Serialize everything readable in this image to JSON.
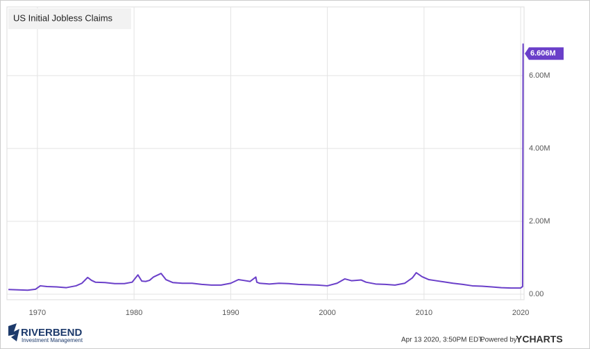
{
  "chart_data": {
    "type": "line",
    "title": "US Initial Jobless Claims",
    "x": [
      1967.0,
      1968.0,
      1969.0,
      1969.8,
      1970.3,
      1971.0,
      1972.0,
      1973.0,
      1974.0,
      1974.6,
      1975.2,
      1975.6,
      1976.0,
      1977.0,
      1978.0,
      1979.0,
      1979.8,
      1980.4,
      1980.8,
      1981.2,
      1981.6,
      1982.0,
      1982.8,
      1983.3,
      1984.0,
      1985.0,
      1986.0,
      1987.0,
      1988.0,
      1989.0,
      1990.0,
      1990.8,
      1991.3,
      1992.0,
      1992.6,
      1992.7,
      1993.0,
      1994.0,
      1995.0,
      1996.0,
      1997.0,
      1998.0,
      1999.0,
      2000.0,
      2001.0,
      2001.8,
      2002.5,
      2003.5,
      2004.0,
      2005.0,
      2006.0,
      2007.0,
      2008.0,
      2008.8,
      2009.2,
      2009.8,
      2010.5,
      2011.0,
      2012.0,
      2013.0,
      2014.0,
      2015.0,
      2016.0,
      2017.0,
      2018.0,
      2019.0,
      2020.0,
      2020.2,
      2020.23,
      2020.25,
      2020.26
    ],
    "series": [
      {
        "name": "US Initial Jobless Claims",
        "color": "#6a3fc9",
        "values": [
          130000,
          120000,
          110000,
          135000,
          230000,
          210000,
          200000,
          180000,
          230000,
          300000,
          460000,
          380000,
          330000,
          320000,
          290000,
          290000,
          330000,
          530000,
          360000,
          350000,
          380000,
          470000,
          570000,
          400000,
          320000,
          300000,
          300000,
          270000,
          250000,
          250000,
          300000,
          400000,
          380000,
          350000,
          470000,
          330000,
          300000,
          280000,
          300000,
          290000,
          270000,
          260000,
          250000,
          230000,
          300000,
          420000,
          370000,
          390000,
          330000,
          280000,
          270000,
          250000,
          300000,
          450000,
          590000,
          480000,
          400000,
          380000,
          340000,
          300000,
          270000,
          230000,
          220000,
          200000,
          180000,
          170000,
          170000,
          211000,
          3307000,
          6867000,
          6606000
        ],
        "value_labels": [
          null,
          null,
          null,
          null,
          null,
          null,
          null,
          null,
          null,
          null,
          null,
          null,
          null,
          null,
          null,
          null,
          null,
          null,
          null,
          null,
          null,
          null,
          null,
          null,
          null,
          null,
          null,
          null,
          null,
          null,
          null,
          null,
          null,
          null,
          null,
          null,
          null,
          null,
          null,
          null,
          null,
          null,
          null,
          null,
          null,
          null,
          null,
          null,
          null,
          null,
          null,
          null,
          null,
          null,
          null,
          null,
          null,
          null,
          null,
          null,
          null,
          null,
          null,
          null,
          null,
          null,
          null,
          null,
          null,
          null,
          "6.606M"
        ]
      }
    ],
    "xlim": [
      1966.85,
      2020.35
    ],
    "xticks": [
      1970,
      1980,
      1990,
      2000,
      2010,
      2020
    ],
    "ylim": [
      -152000,
      7886000
    ],
    "yticks": [
      {
        "value": 0,
        "label": "0.00"
      },
      {
        "value": 2000000,
        "label": "2.00M"
      },
      {
        "value": 4000000,
        "label": "4.00M"
      },
      {
        "value": 6000000,
        "label": "6.00M"
      }
    ],
    "grid": true
  },
  "logo": {
    "name": "RIVERBEND",
    "tagline": "Investment Management"
  },
  "footer": {
    "timestamp": "Apr 13 2020, 3:50PM EDT.",
    "powered_by": "Powered by",
    "brand": "YCHARTS"
  }
}
